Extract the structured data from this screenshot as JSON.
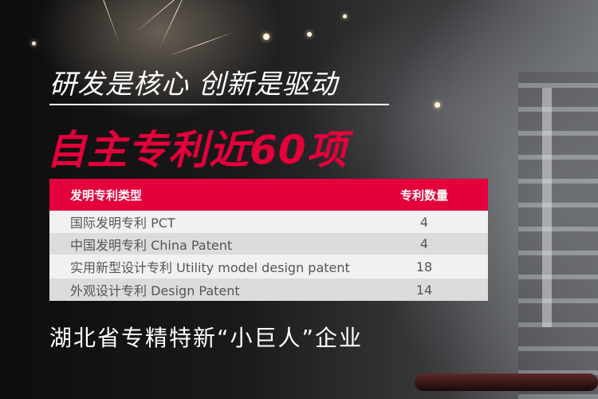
{
  "slogan": "研发是核心 创新是驱动",
  "headline": "自主专利近60项",
  "table": {
    "headers": [
      "发明专利类型",
      "专利数量"
    ],
    "rows": [
      {
        "type": "国际发明专利   PCT",
        "count": "4"
      },
      {
        "type": "中国发明专利   China Patent",
        "count": "4"
      },
      {
        "type": "实用新型设计专利  Utility model design patent",
        "count": "18"
      },
      {
        "type": "外观设计专利  Design Patent",
        "count": "14"
      }
    ]
  },
  "footer": "湖北省专精特新“小巨人”企业",
  "colors": {
    "accent": "#e4003a",
    "row_light": "#f1f1f1",
    "row_dark": "#dcdcdc"
  }
}
